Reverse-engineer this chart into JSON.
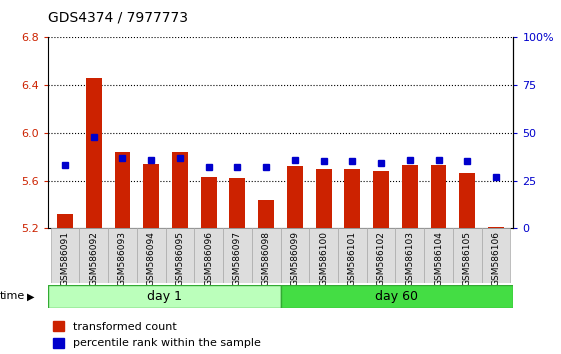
{
  "title": "GDS4374 / 7977773",
  "samples": [
    "GSM586091",
    "GSM586092",
    "GSM586093",
    "GSM586094",
    "GSM586095",
    "GSM586096",
    "GSM586097",
    "GSM586098",
    "GSM586099",
    "GSM586100",
    "GSM586101",
    "GSM586102",
    "GSM586103",
    "GSM586104",
    "GSM586105",
    "GSM586106"
  ],
  "red_values": [
    5.32,
    6.46,
    5.84,
    5.74,
    5.84,
    5.63,
    5.62,
    5.44,
    5.72,
    5.7,
    5.7,
    5.68,
    5.73,
    5.73,
    5.66,
    5.21
  ],
  "blue_values": [
    33,
    48,
    37,
    36,
    37,
    32,
    32,
    32,
    36,
    35,
    35,
    34,
    36,
    36,
    35,
    27
  ],
  "ylim_left": [
    5.2,
    6.8
  ],
  "ylim_right": [
    0,
    100
  ],
  "yticks_left": [
    5.2,
    5.6,
    6.0,
    6.4,
    6.8
  ],
  "yticks_right": [
    0,
    25,
    50,
    75,
    100
  ],
  "ytick_labels_right": [
    "0",
    "25",
    "50",
    "75",
    "100%"
  ],
  "day1_count": 8,
  "bar_color_red": "#cc2200",
  "bar_color_blue": "#0000cc",
  "bg_color_day1": "#bbffbb",
  "bg_color_day60": "#44dd44",
  "bar_width": 0.55,
  "legend_red": "transformed count",
  "legend_blue": "percentile rank within the sample",
  "time_label": "time",
  "day1_label": "day 1",
  "day60_label": "day 60"
}
